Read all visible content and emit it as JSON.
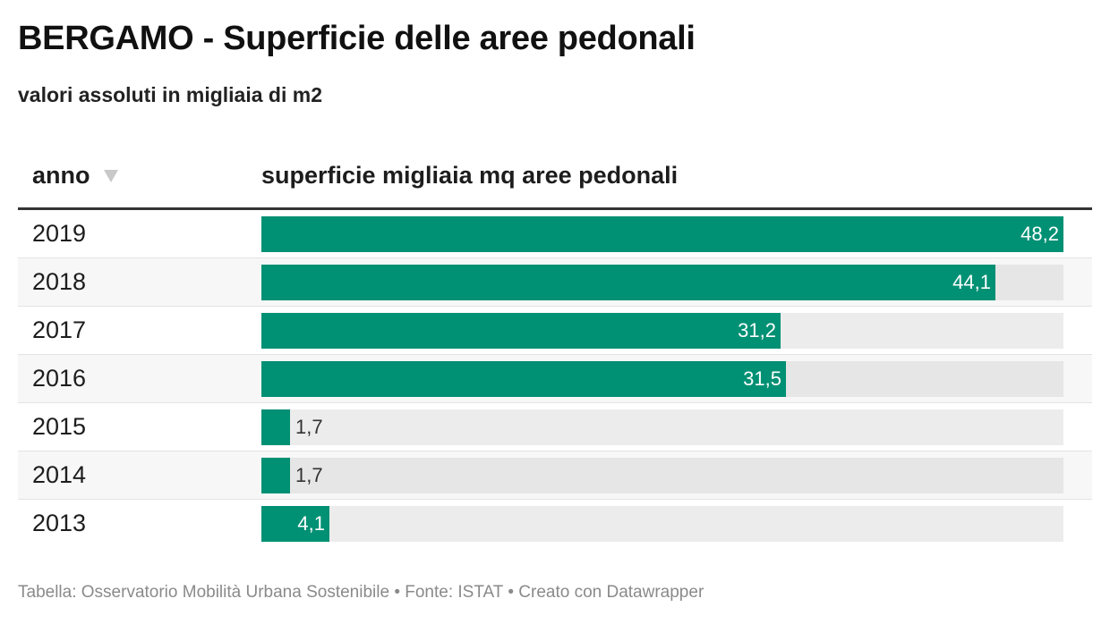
{
  "title": "BERGAMO - Superficie delle aree pedonali",
  "subtitle": "valori assoluti in migliaia di m2",
  "columns": {
    "year": "anno",
    "bar": "superficie migliaia mq aree pedonali"
  },
  "footer": "Tabella: Osservatorio Mobilità Urbana Sostenibile • Fonte: ISTAT • Creato con Datawrapper",
  "colors": {
    "bar": "#009074",
    "track": "#ececec",
    "header_rule": "#333333"
  },
  "chart_data": {
    "type": "table",
    "sort": "anno descending",
    "categories": [
      "2019",
      "2018",
      "2017",
      "2016",
      "2015",
      "2014",
      "2013"
    ],
    "values": [
      48.2,
      44.1,
      31.2,
      31.5,
      1.7,
      1.7,
      4.1
    ],
    "value_labels": [
      "48,2",
      "44,1",
      "31,2",
      "31,5",
      "1,7",
      "1,7",
      "4,1"
    ],
    "xlim": [
      0,
      48.2
    ]
  }
}
